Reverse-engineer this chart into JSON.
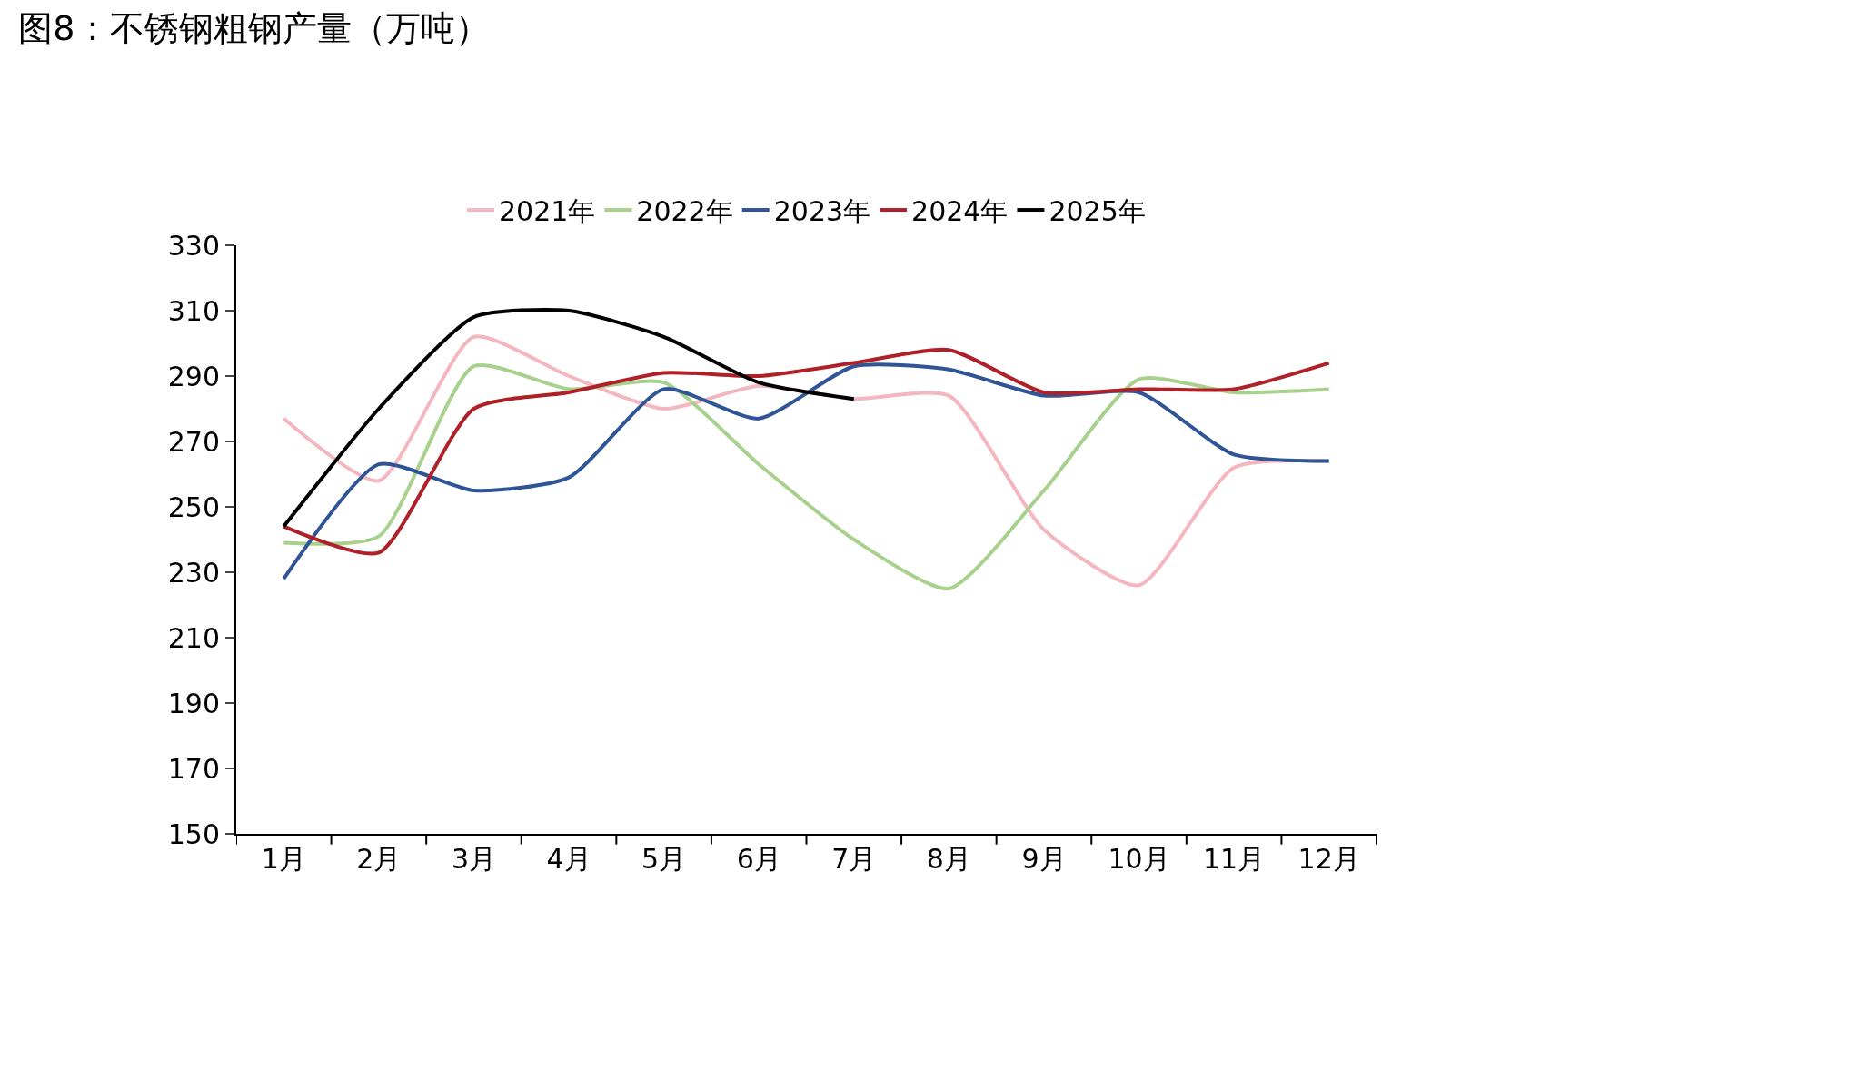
{
  "chart_data": {
    "type": "line",
    "title": "图8：不锈钢粗钢产量（万吨）",
    "categories": [
      "1月",
      "2月",
      "3月",
      "4月",
      "5月",
      "6月",
      "7月",
      "8月",
      "9月",
      "10月",
      "11月",
      "12月"
    ],
    "series": [
      {
        "name": "2021年",
        "color": "#f4b6bf",
        "values": [
          277,
          258,
          302,
          290,
          280,
          287,
          283,
          284,
          243,
          226,
          262,
          264
        ]
      },
      {
        "name": "2022年",
        "color": "#a9d18e",
        "values": [
          239,
          241,
          293,
          286,
          288,
          263,
          240,
          225,
          255,
          289,
          285,
          286
        ]
      },
      {
        "name": "2023年",
        "color": "#2f5597",
        "values": [
          228,
          263,
          255,
          259,
          286,
          277,
          293,
          292,
          284,
          285,
          266,
          264
        ]
      },
      {
        "name": "2024年",
        "color": "#b02028",
        "values": [
          244,
          236,
          280,
          285,
          291,
          290,
          294,
          298,
          285,
          286,
          286,
          294
        ]
      },
      {
        "name": "2025年",
        "color": "#000000",
        "values": [
          244,
          280,
          308,
          310,
          302,
          288,
          283,
          null,
          null,
          null,
          null,
          null
        ]
      }
    ],
    "ylim": [
      150,
      330
    ],
    "yticks": [
      150,
      170,
      190,
      210,
      230,
      250,
      270,
      290,
      310,
      330
    ],
    "legend": "top",
    "marker": "none",
    "line_style": "solid"
  }
}
